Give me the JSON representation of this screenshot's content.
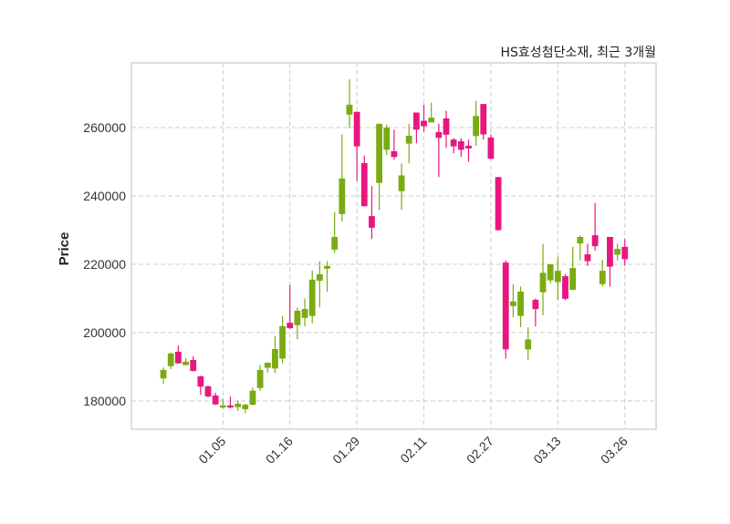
{
  "chart_data": {
    "type": "candlestick",
    "title": "HS효성첨단소재, 최근 3개월",
    "xlabel": "",
    "ylabel": "Price",
    "ylim": [
      171733,
      278933
    ],
    "xlim": [
      -4.3,
      66.2
    ],
    "grid": true,
    "colors": {
      "up": "#7aab12",
      "down": "#e8177f",
      "grid": "#cccccc",
      "frame": "#d4d4d4"
    },
    "yticks": [
      180000,
      200000,
      220000,
      240000,
      260000
    ],
    "ytick_labels": [
      "180000",
      "200000",
      "220000",
      "240000",
      "260000"
    ],
    "xticks": [
      8,
      17,
      26,
      35,
      44,
      53,
      62
    ],
    "xtick_labels": [
      "01.05",
      "01.16",
      "01.29",
      "02.11",
      "02.27",
      "03.13",
      "03.26"
    ],
    "ohlc_fields": [
      "open",
      "high",
      "low",
      "close"
    ],
    "candles": [
      [
        186600,
        189800,
        185070,
        189070
      ],
      [
        190200,
        194200,
        189300,
        193900
      ],
      [
        194400,
        196200,
        190900,
        191000
      ],
      [
        190500,
        192500,
        190500,
        191500
      ],
      [
        192000,
        193100,
        188600,
        188800
      ],
      [
        187200,
        187400,
        181800,
        184200
      ],
      [
        184300,
        184500,
        181100,
        181300
      ],
      [
        181600,
        182400,
        178800,
        179000
      ],
      [
        178100,
        180600,
        177800,
        178700
      ],
      [
        178700,
        181300,
        177800,
        178100
      ],
      [
        178200,
        180200,
        177100,
        179200
      ],
      [
        177600,
        179200,
        176400,
        178900
      ],
      [
        178900,
        183900,
        178700,
        183000
      ],
      [
        183800,
        190500,
        183000,
        189100
      ],
      [
        189700,
        191200,
        188300,
        191200
      ],
      [
        189500,
        198900,
        188200,
        195200
      ],
      [
        192400,
        204900,
        191000,
        201900
      ],
      [
        202900,
        214000,
        201100,
        201300
      ],
      [
        202200,
        207400,
        198100,
        206400
      ],
      [
        204300,
        210000,
        201800,
        206900
      ],
      [
        204900,
        218200,
        202700,
        215500
      ],
      [
        215200,
        220900,
        207400,
        217100
      ],
      [
        218700,
        220900,
        212000,
        219500
      ],
      [
        224300,
        235300,
        223400,
        228000
      ],
      [
        234700,
        258000,
        232500,
        245100
      ],
      [
        263800,
        274100,
        259800,
        266700
      ],
      [
        264600,
        264700,
        244400,
        254500
      ],
      [
        249600,
        251800,
        236900,
        237000
      ],
      [
        234100,
        242900,
        227400,
        230700
      ],
      [
        243800,
        261100,
        235900,
        261100
      ],
      [
        253500,
        260900,
        252000,
        260000
      ],
      [
        253100,
        259400,
        250600,
        251400
      ],
      [
        241400,
        249500,
        235900,
        246000
      ],
      [
        255300,
        261100,
        249500,
        257600
      ],
      [
        264400,
        264400,
        255400,
        259400
      ],
      [
        262000,
        266700,
        258700,
        260400
      ],
      [
        261500,
        267300,
        261500,
        262900
      ],
      [
        258700,
        261100,
        245500,
        257000
      ],
      [
        262700,
        264900,
        254100,
        257900
      ],
      [
        256500,
        256900,
        252500,
        254500
      ],
      [
        256000,
        256900,
        251400,
        253500
      ],
      [
        254700,
        256500,
        250000,
        253900
      ],
      [
        257500,
        267800,
        254700,
        263400
      ],
      [
        266900,
        266900,
        256500,
        258000
      ],
      [
        257100,
        258000,
        250700,
        250900
      ],
      [
        245500,
        245600,
        229800,
        230000
      ],
      [
        220500,
        221100,
        192400,
        195100
      ],
      [
        207800,
        214100,
        204500,
        209100
      ],
      [
        204900,
        213500,
        201600,
        212000
      ],
      [
        195100,
        201500,
        192000,
        198000
      ],
      [
        209600,
        210000,
        201800,
        206900
      ],
      [
        211800,
        226000,
        205100,
        217500
      ],
      [
        215300,
        220000,
        214400,
        220000
      ],
      [
        214800,
        222200,
        209500,
        218100
      ],
      [
        216500,
        217100,
        209500,
        209900
      ],
      [
        212500,
        225100,
        212500,
        218900
      ],
      [
        226100,
        228500,
        221100,
        228000
      ],
      [
        222900,
        226000,
        219500,
        220900
      ],
      [
        228500,
        237900,
        224000,
        225300
      ],
      [
        214200,
        221300,
        213500,
        218100
      ],
      [
        228000,
        228000,
        213500,
        219300
      ],
      [
        222800,
        226000,
        221100,
        224500
      ],
      [
        225100,
        227400,
        219500,
        221500
      ]
    ]
  }
}
